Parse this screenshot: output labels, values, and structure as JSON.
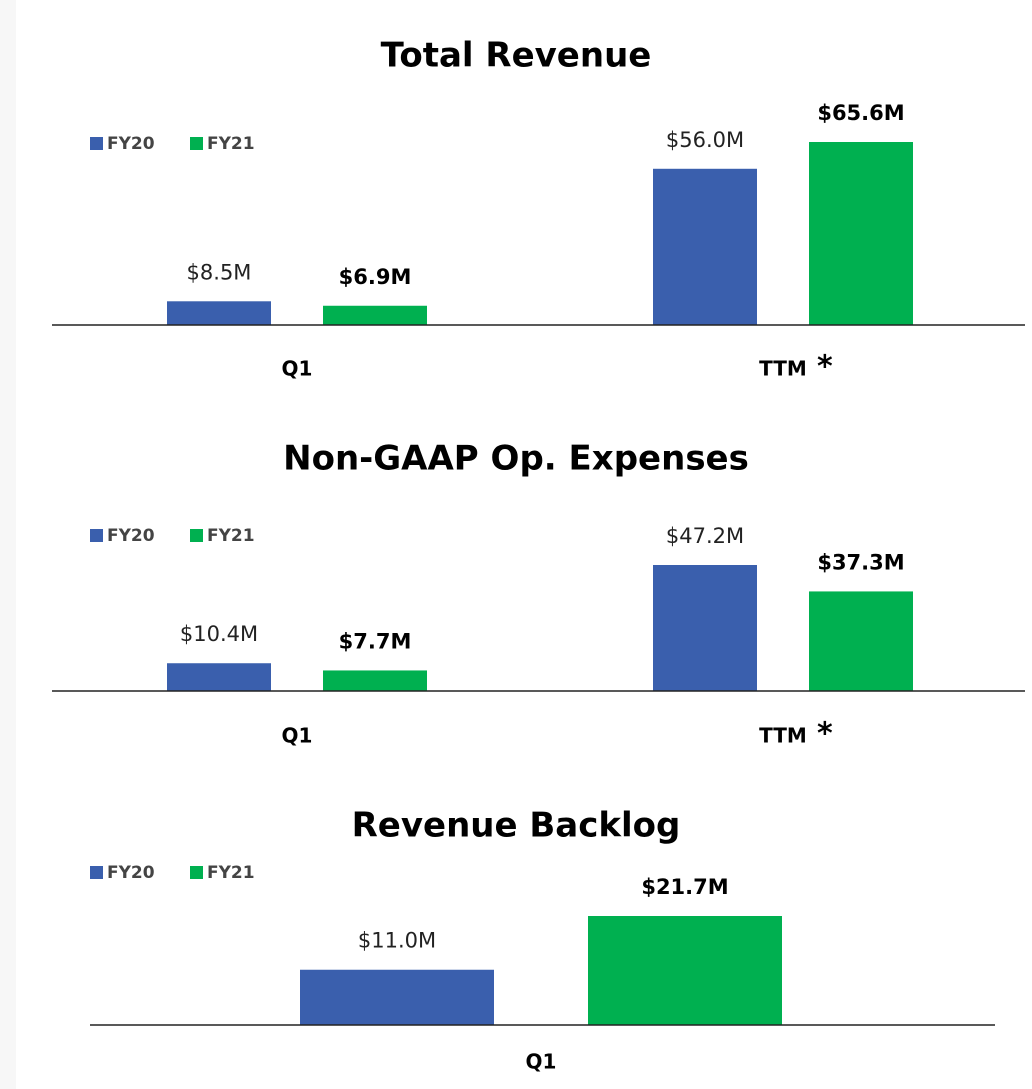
{
  "chart_data": [
    {
      "type": "bar",
      "title": "Total Revenue",
      "categories": [
        "Q1",
        "TTM"
      ],
      "annotation": "*",
      "series": [
        {
          "name": "FY20",
          "color": "#3a5fad",
          "values": [
            8.5,
            56.0
          ],
          "value_labels": [
            "$8.5M",
            "$56.0M"
          ]
        },
        {
          "name": "FY21",
          "color": "#00b050",
          "values": [
            6.9,
            65.6
          ],
          "value_labels": [
            "$6.9M",
            "$65.6M"
          ]
        }
      ]
    },
    {
      "type": "bar",
      "title": "Non-GAAP Op. Expenses",
      "categories": [
        "Q1",
        "TTM"
      ],
      "annotation": "*",
      "series": [
        {
          "name": "FY20",
          "color": "#3a5fad",
          "values": [
            10.4,
            47.2
          ],
          "value_labels": [
            "$10.4M",
            "$47.2M"
          ]
        },
        {
          "name": "FY21",
          "color": "#00b050",
          "values": [
            7.7,
            37.3
          ],
          "value_labels": [
            "$7.7M",
            "$37.3M"
          ]
        }
      ]
    },
    {
      "type": "bar",
      "title": "Revenue Backlog",
      "categories": [
        "Q1"
      ],
      "series": [
        {
          "name": "FY20",
          "color": "#3a5fad",
          "values": [
            11.0
          ],
          "value_labels": [
            "$11.0M"
          ]
        },
        {
          "name": "FY21",
          "color": "#00b050",
          "values": [
            21.7
          ],
          "value_labels": [
            "$21.7M"
          ]
        }
      ]
    }
  ]
}
